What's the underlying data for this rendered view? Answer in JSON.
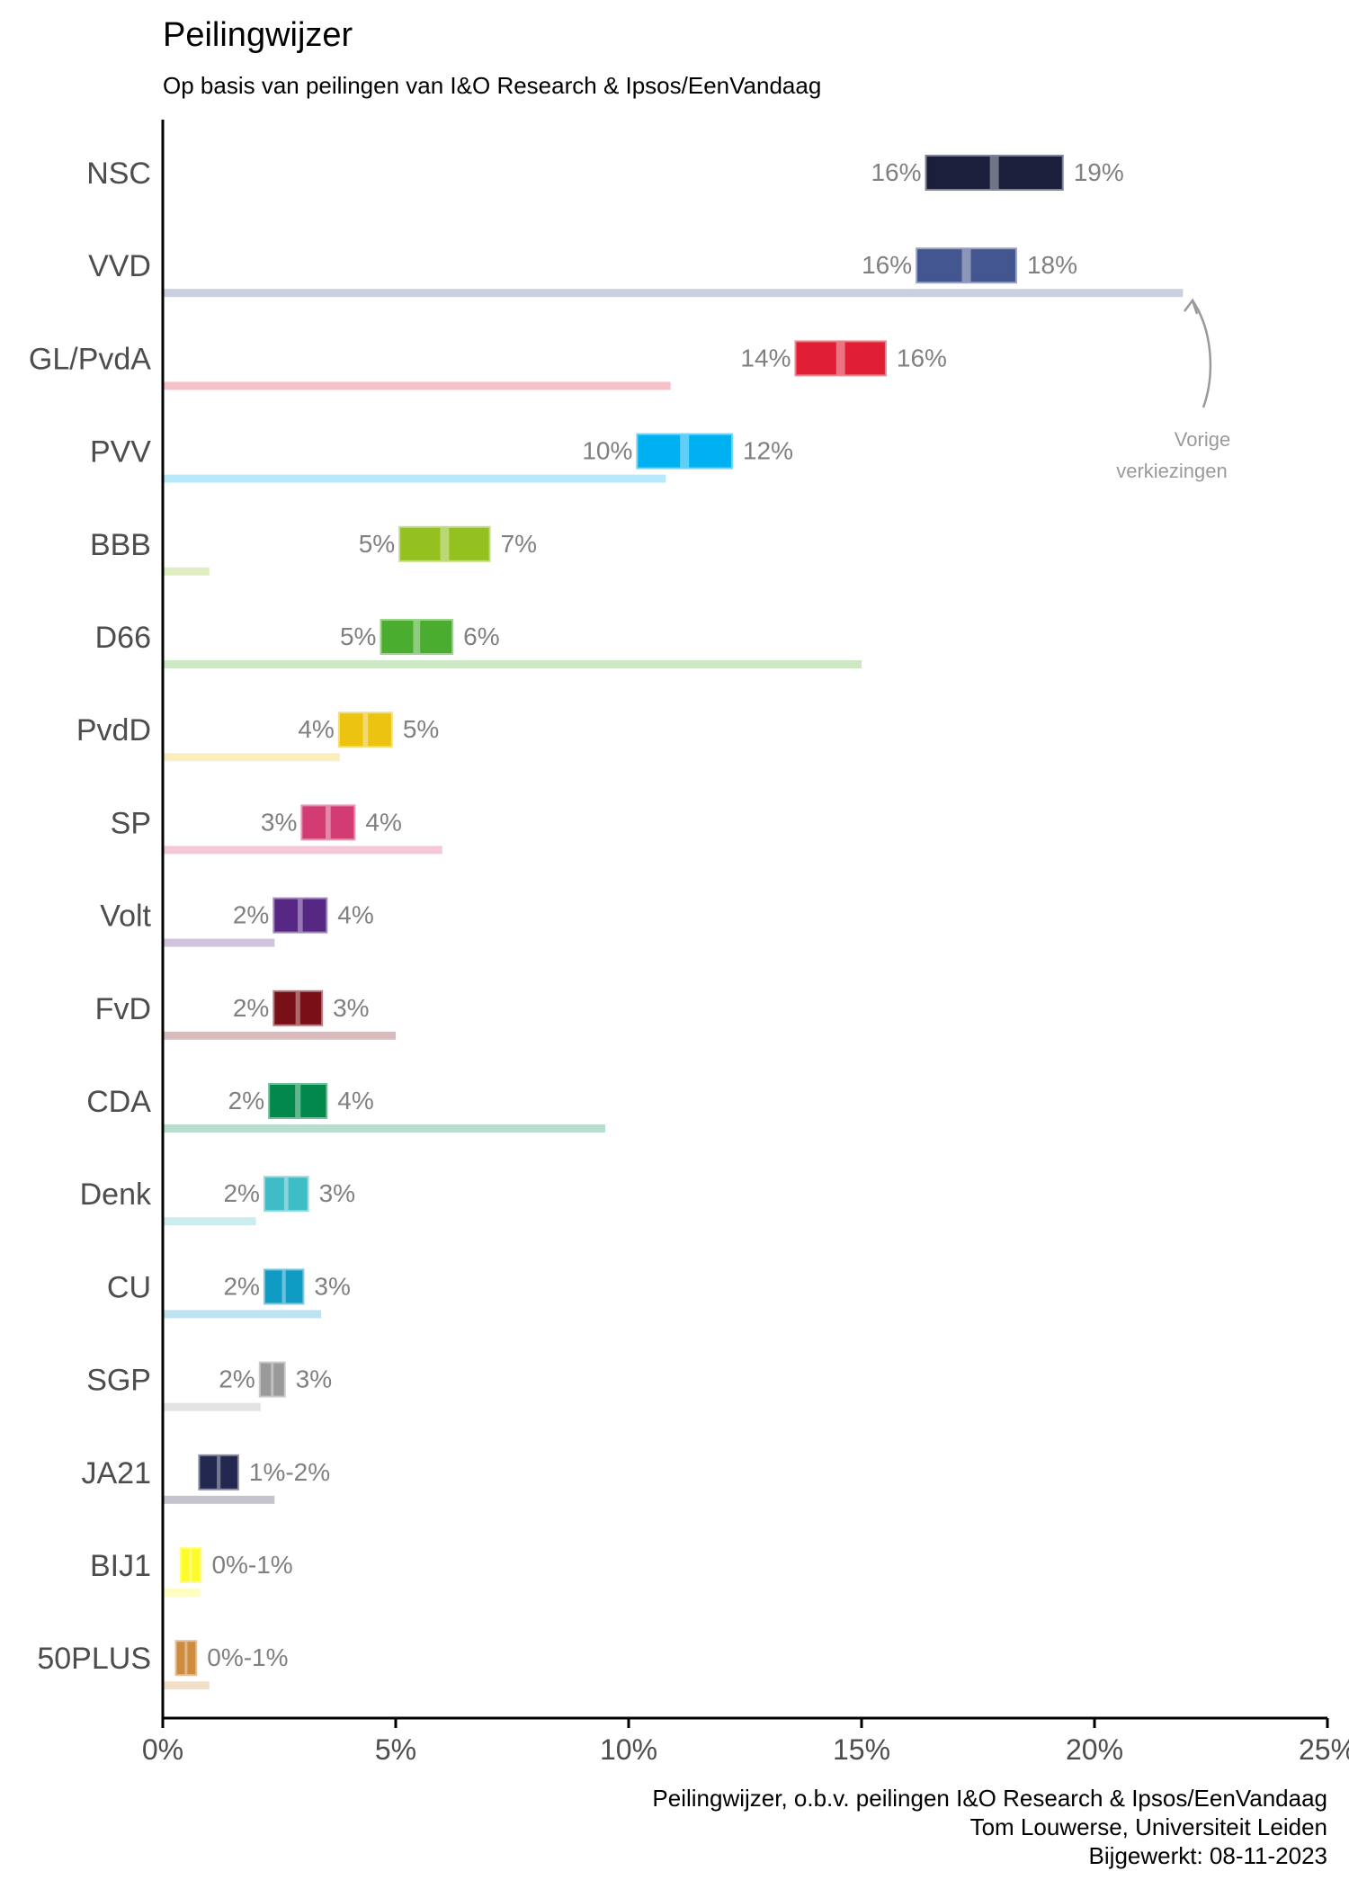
{
  "chart_data": {
    "type": "bar",
    "title": "Peilingwijzer",
    "subtitle": "Op basis van peilingen van I&O Research & Ipsos/EenVandaag",
    "xlabel": "",
    "ylabel": "",
    "xlim": [
      0,
      25
    ],
    "x_ticks": [
      0,
      5,
      10,
      15,
      20,
      25
    ],
    "x_tick_labels": [
      "0%",
      "5%",
      "10%",
      "15%",
      "20%",
      "25%"
    ],
    "series": [
      {
        "name": "Peilingwijzer",
        "kind": "range"
      },
      {
        "name": "Vorige verkiezingen",
        "kind": "bar"
      }
    ],
    "annotation": [
      "Vorige",
      "verkiezingen"
    ],
    "caption": [
      "Peilingwijzer, o.b.v. peilingen I&O Research & Ipsos/EenVandaag",
      "Tom Louwerse, Universiteit Leiden",
      "Bijgewerkt: 08-11-2023"
    ],
    "parties": [
      {
        "name": "NSC",
        "low": 16.4,
        "high": 19.3,
        "previous": null,
        "color": "#1b1f3b",
        "low_label": "16%",
        "high_label": "19%"
      },
      {
        "name": "VVD",
        "low": 16.2,
        "high": 18.3,
        "previous": 21.9,
        "color": "#44568f",
        "low_label": "16%",
        "high_label": "18%"
      },
      {
        "name": "GL/PvdA",
        "low": 13.6,
        "high": 15.5,
        "previous": 10.9,
        "color": "#e01f36",
        "low_label": "14%",
        "high_label": "16%"
      },
      {
        "name": "PVV",
        "low": 10.2,
        "high": 12.2,
        "previous": 10.8,
        "color": "#00b1f2",
        "low_label": "10%",
        "high_label": "12%"
      },
      {
        "name": "BBB",
        "low": 5.1,
        "high": 7.0,
        "previous": 1.0,
        "color": "#94c11f",
        "low_label": "5%",
        "high_label": "7%"
      },
      {
        "name": "D66",
        "low": 4.7,
        "high": 6.2,
        "previous": 15.0,
        "color": "#4aad2f",
        "low_label": "5%",
        "high_label": "6%"
      },
      {
        "name": "PvdD",
        "low": 3.8,
        "high": 4.9,
        "previous": 3.8,
        "color": "#ecc311",
        "low_label": "4%",
        "high_label": "5%"
      },
      {
        "name": "SP",
        "low": 3.0,
        "high": 4.1,
        "previous": 6.0,
        "color": "#d33c73",
        "low_label": "3%",
        "high_label": "4%"
      },
      {
        "name": "Volt",
        "low": 2.4,
        "high": 3.5,
        "previous": 2.4,
        "color": "#562883",
        "low_label": "2%",
        "high_label": "4%"
      },
      {
        "name": "FvD",
        "low": 2.4,
        "high": 3.4,
        "previous": 5.0,
        "color": "#7a1017",
        "low_label": "2%",
        "high_label": "3%"
      },
      {
        "name": "CDA",
        "low": 2.3,
        "high": 3.5,
        "previous": 9.5,
        "color": "#00894b",
        "low_label": "2%",
        "high_label": "4%"
      },
      {
        "name": "Denk",
        "low": 2.2,
        "high": 3.1,
        "previous": 2.0,
        "color": "#3fbdc7",
        "low_label": "2%",
        "high_label": "3%"
      },
      {
        "name": "CU",
        "low": 2.2,
        "high": 3.0,
        "previous": 3.4,
        "color": "#0f9bc4",
        "low_label": "2%",
        "high_label": "3%"
      },
      {
        "name": "SGP",
        "low": 2.1,
        "high": 2.6,
        "previous": 2.1,
        "color": "#9a9a9a",
        "low_label": "2%",
        "high_label": "3%"
      },
      {
        "name": "JA21",
        "low": 0.8,
        "high": 1.6,
        "previous": 2.4,
        "color": "#232850",
        "low_label": "",
        "high_label": "1%-2%"
      },
      {
        "name": "BIJ1",
        "low": 0.4,
        "high": 0.8,
        "previous": 0.8,
        "color": "#fdfb2a",
        "low_label": "",
        "high_label": "0%-1%"
      },
      {
        "name": "50PLUS",
        "low": 0.3,
        "high": 0.7,
        "previous": 1.0,
        "color": "#cd8c3f",
        "low_label": "",
        "high_label": "0%-1%"
      }
    ]
  }
}
